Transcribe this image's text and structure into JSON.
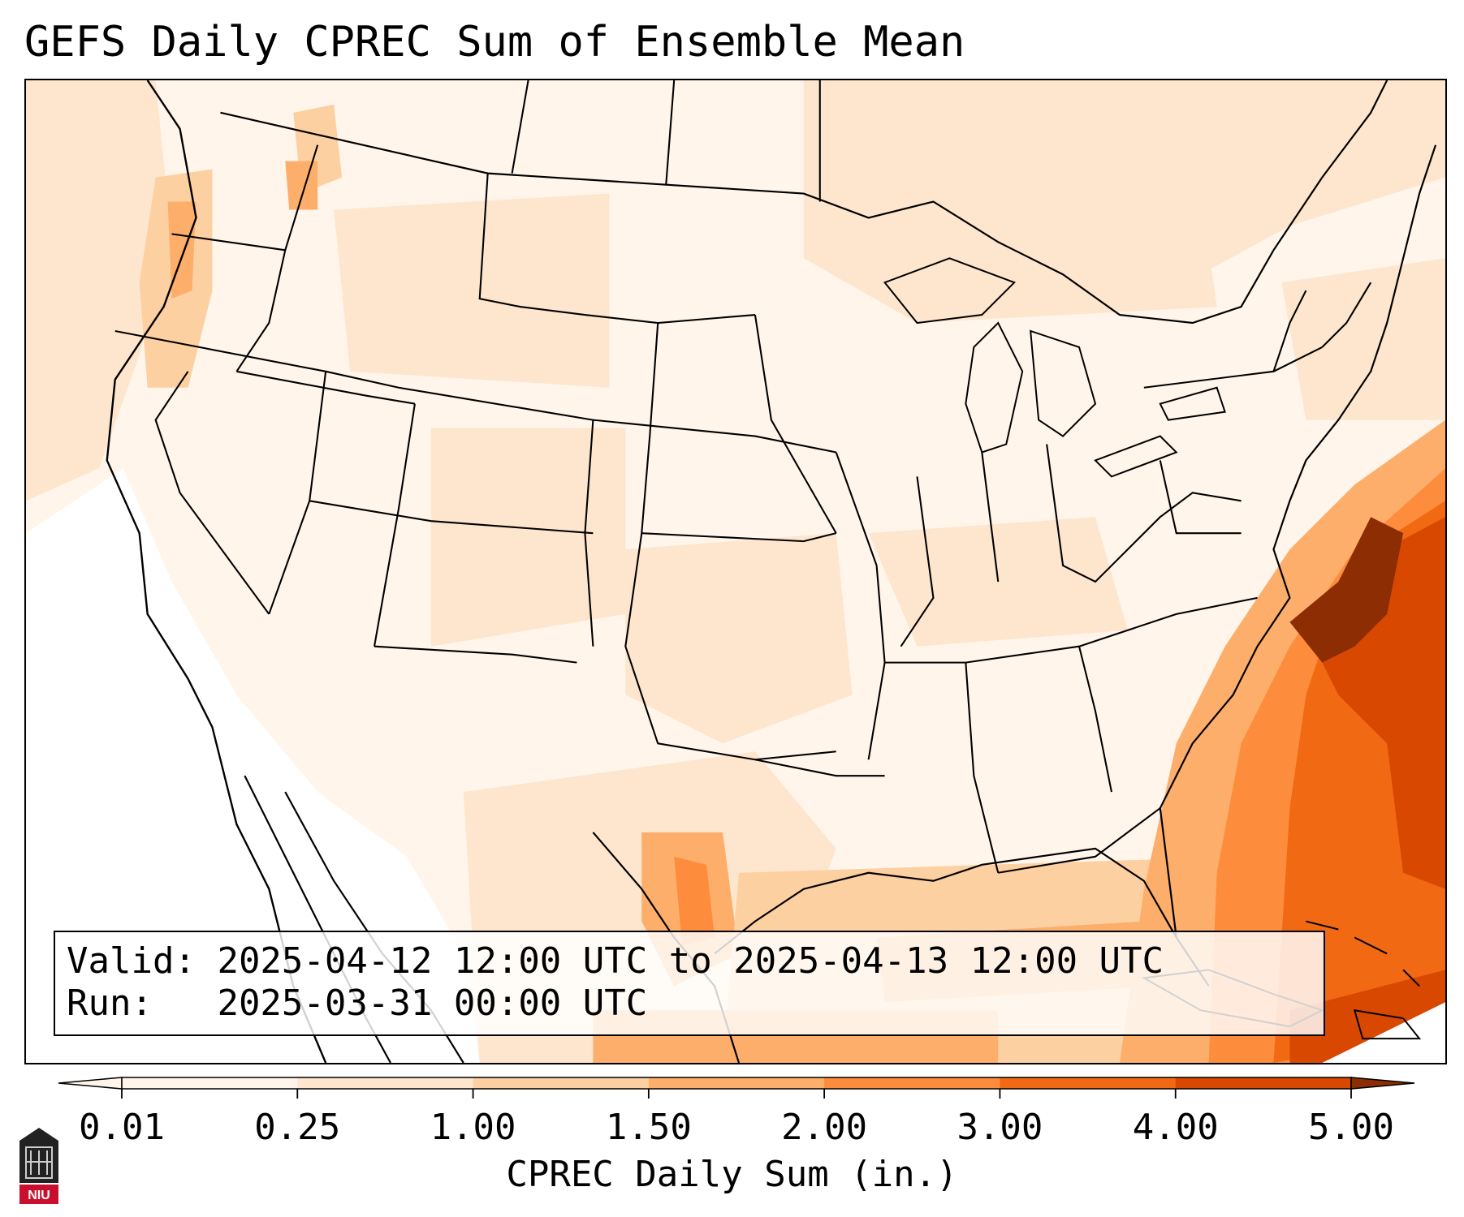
{
  "title": "GEFS Daily CPREC Sum of Ensemble Mean",
  "info": {
    "valid_label": "Valid:",
    "valid_value": "2025-04-12 12:00 UTC to 2025-04-13 12:00 UTC",
    "run_label": "Run:",
    "run_value": "2025-03-31 00:00 UTC"
  },
  "colorbar": {
    "label": "CPREC Daily Sum (in.)",
    "ticks": [
      "0.01",
      "0.25",
      "1.00",
      "1.50",
      "2.00",
      "3.00",
      "4.00",
      "5.00"
    ],
    "colors": [
      "#fff5eb",
      "#fee6ce",
      "#fdd0a2",
      "#fdae6b",
      "#fd8d3c",
      "#f16913",
      "#d94801",
      "#8c2d04"
    ],
    "extend": "both"
  },
  "logo": {
    "text": "NIU",
    "color": "#c8102e"
  },
  "colors": {
    "land_border": "#000000",
    "map_background": "#ffffff"
  }
}
